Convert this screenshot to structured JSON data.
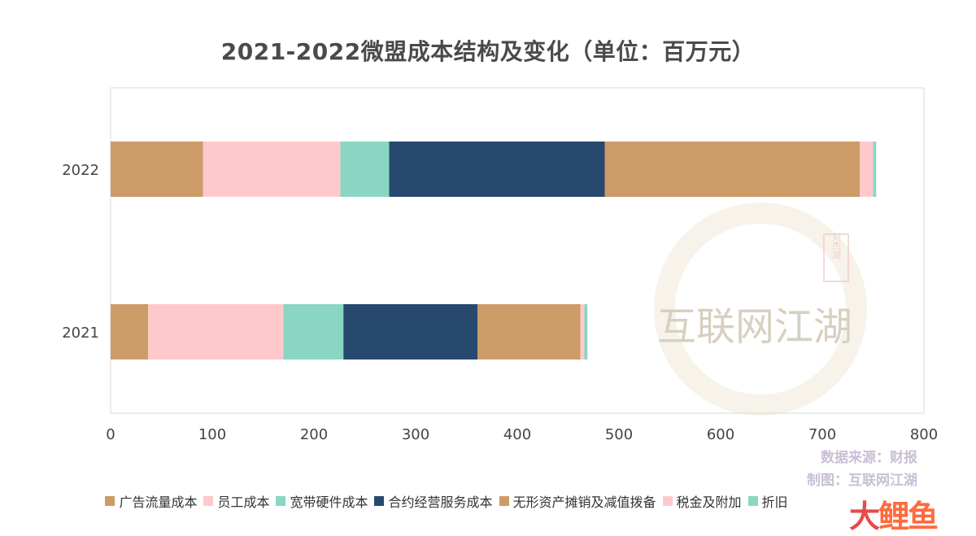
{
  "title": "2021-2022微盟成本结构及变化（单位：百万元）",
  "source_text": "数据来源：财报",
  "maker_text": "制图：互联网江湖",
  "watermark": {
    "text": "互联网江湖",
    "seal_text": "刘杰湖"
  },
  "brand": {
    "part1": "大",
    "part2": "鲤鱼"
  },
  "chart_data": {
    "type": "bar",
    "orientation": "horizontal",
    "stacked": true,
    "categories": [
      "2022",
      "2021"
    ],
    "series": [
      {
        "name": "广告流量成本",
        "color": "#cd9b67",
        "values": [
          91,
          37
        ]
      },
      {
        "name": "员工成本",
        "color": "#ffc9cc",
        "values": [
          135,
          133
        ]
      },
      {
        "name": "宽带硬件成本",
        "color": "#8ad6c2",
        "values": [
          48,
          59
        ]
      },
      {
        "name": "合约经营服务成本",
        "color": "#28496e",
        "values": [
          212,
          132
        ]
      },
      {
        "name": "无形资产摊销及减值拨备",
        "color": "#cd9b67",
        "values": [
          251,
          101
        ]
      },
      {
        "name": "税金及附加",
        "color": "#ffc9cc",
        "values": [
          13,
          4
        ]
      },
      {
        "name": "折旧",
        "color": "#8ad6c2",
        "values": [
          3,
          3
        ]
      }
    ],
    "xlim": [
      0,
      800
    ],
    "xticks": [
      "0",
      "100",
      "200",
      "300",
      "400",
      "500",
      "600",
      "700",
      "800"
    ],
    "grid": false,
    "legend_position": "bottom"
  }
}
